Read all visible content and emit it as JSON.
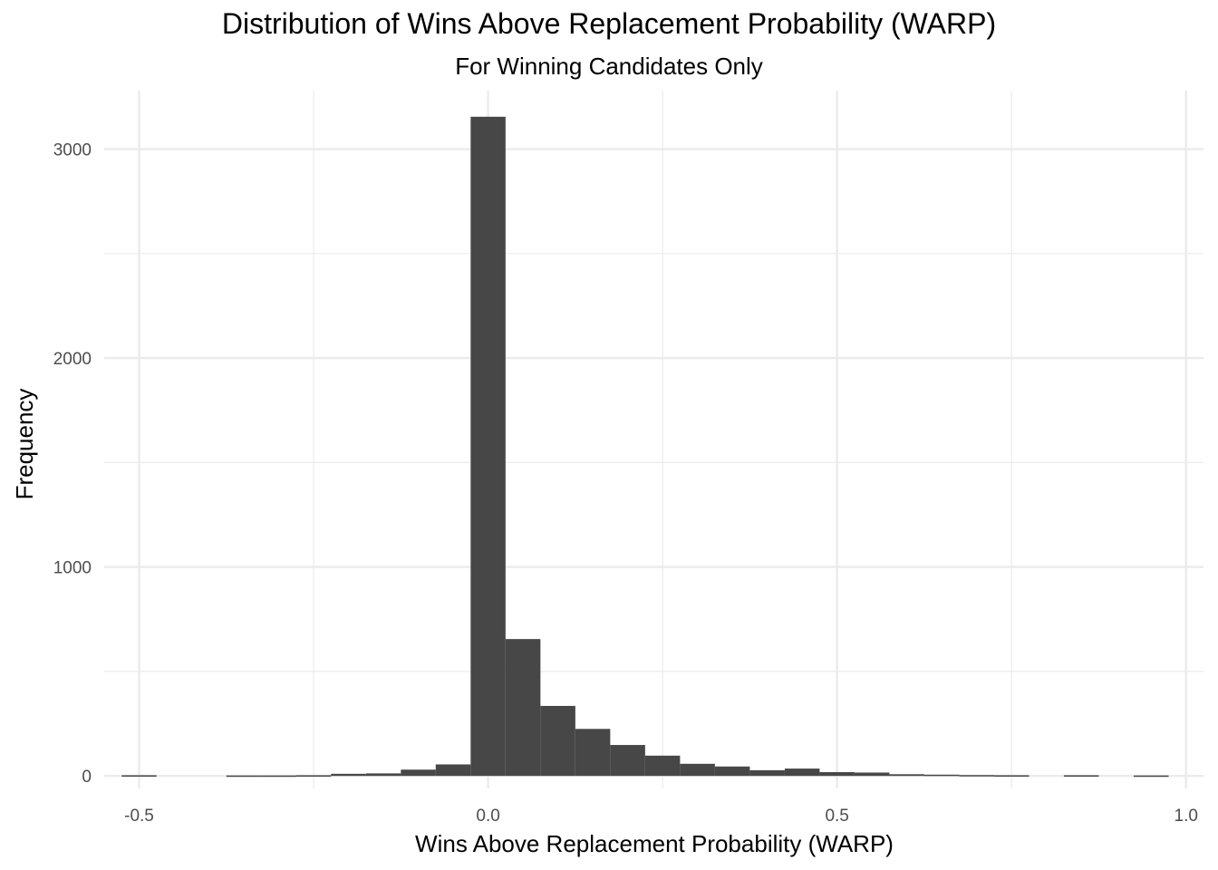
{
  "chart_data": {
    "type": "histogram",
    "title": "Distribution of Wins Above Replacement Probability (WARP)",
    "subtitle": "For Winning Candidates Only",
    "xlabel": "Wins Above Replacement Probability (WARP)",
    "ylabel": "Frequency",
    "xlim": [
      -0.55,
      1.025
    ],
    "ylim": [
      -60,
      3280
    ],
    "x_ticks": [
      -0.5,
      0.0,
      0.5,
      1.0
    ],
    "x_tick_labels": [
      "-0.5",
      "0.0",
      "0.5",
      "1.0"
    ],
    "x_minor_ticks": [
      -0.25,
      0.25,
      0.75
    ],
    "y_ticks": [
      0,
      1000,
      2000,
      3000
    ],
    "y_tick_labels": [
      "0",
      "1000",
      "2000",
      "3000"
    ],
    "y_minor_ticks": [
      500,
      1500,
      2500
    ],
    "bin_width": 0.05,
    "bins": [
      {
        "x0": -0.525,
        "x1": -0.475,
        "count": 3
      },
      {
        "x0": -0.375,
        "x1": -0.325,
        "count": 2
      },
      {
        "x0": -0.325,
        "x1": -0.275,
        "count": 2
      },
      {
        "x0": -0.275,
        "x1": -0.225,
        "count": 3
      },
      {
        "x0": -0.225,
        "x1": -0.175,
        "count": 10
      },
      {
        "x0": -0.175,
        "x1": -0.125,
        "count": 12
      },
      {
        "x0": -0.125,
        "x1": -0.075,
        "count": 30
      },
      {
        "x0": -0.075,
        "x1": -0.025,
        "count": 55
      },
      {
        "x0": -0.025,
        "x1": 0.025,
        "count": 3155
      },
      {
        "x0": 0.025,
        "x1": 0.075,
        "count": 655
      },
      {
        "x0": 0.075,
        "x1": 0.125,
        "count": 335
      },
      {
        "x0": 0.125,
        "x1": 0.175,
        "count": 225
      },
      {
        "x0": 0.175,
        "x1": 0.225,
        "count": 148
      },
      {
        "x0": 0.225,
        "x1": 0.275,
        "count": 97
      },
      {
        "x0": 0.275,
        "x1": 0.325,
        "count": 58
      },
      {
        "x0": 0.325,
        "x1": 0.375,
        "count": 45
      },
      {
        "x0": 0.375,
        "x1": 0.425,
        "count": 27
      },
      {
        "x0": 0.425,
        "x1": 0.475,
        "count": 35
      },
      {
        "x0": 0.475,
        "x1": 0.525,
        "count": 18
      },
      {
        "x0": 0.525,
        "x1": 0.575,
        "count": 16
      },
      {
        "x0": 0.575,
        "x1": 0.625,
        "count": 8
      },
      {
        "x0": 0.625,
        "x1": 0.675,
        "count": 6
      },
      {
        "x0": 0.675,
        "x1": 0.725,
        "count": 4
      },
      {
        "x0": 0.725,
        "x1": 0.775,
        "count": 3
      },
      {
        "x0": 0.825,
        "x1": 0.875,
        "count": 3
      },
      {
        "x0": 0.925,
        "x1": 0.975,
        "count": 2
      }
    ],
    "grid": true,
    "bar_color": "#474747",
    "grid_color": "#ebebeb"
  }
}
